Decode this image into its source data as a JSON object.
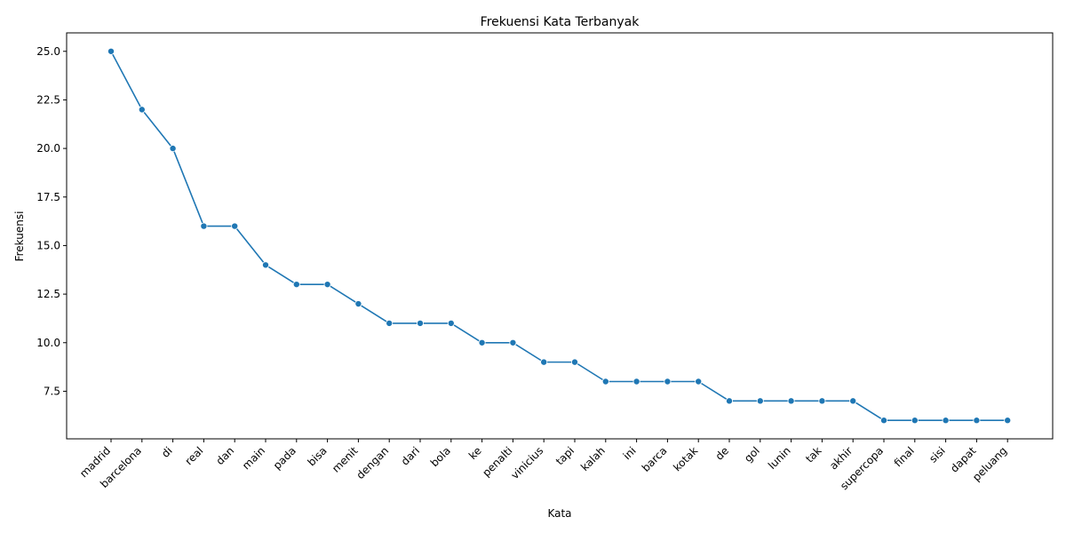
{
  "chart_data": {
    "type": "line",
    "title": "Frekuensi Kata Terbanyak",
    "xlabel": "Kata",
    "ylabel": "Frekuensi",
    "categories": [
      "madrid",
      "barcelona",
      "di",
      "real",
      "dan",
      "main",
      "pada",
      "bisa",
      "menit",
      "dengan",
      "dari",
      "bola",
      "ke",
      "penalti",
      "vinicius",
      "tapi",
      "kalah",
      "ini",
      "barca",
      "kotak",
      "de",
      "gol",
      "lunin",
      "tak",
      "akhir",
      "supercopa",
      "final",
      "sisi",
      "dapat",
      "peluang"
    ],
    "values": [
      25,
      22,
      20,
      16,
      16,
      14,
      13,
      13,
      12,
      11,
      11,
      11,
      10,
      10,
      9,
      9,
      8,
      8,
      8,
      8,
      7,
      7,
      7,
      7,
      7,
      6,
      6,
      6,
      6,
      6
    ],
    "y_ticks": [
      "7.5",
      "10.0",
      "12.5",
      "15.0",
      "17.5",
      "20.0",
      "22.5",
      "25.0"
    ],
    "ylim": [
      5.05,
      25.95
    ],
    "grid": false,
    "marker": "circle",
    "line_color": "#1f77b4"
  }
}
